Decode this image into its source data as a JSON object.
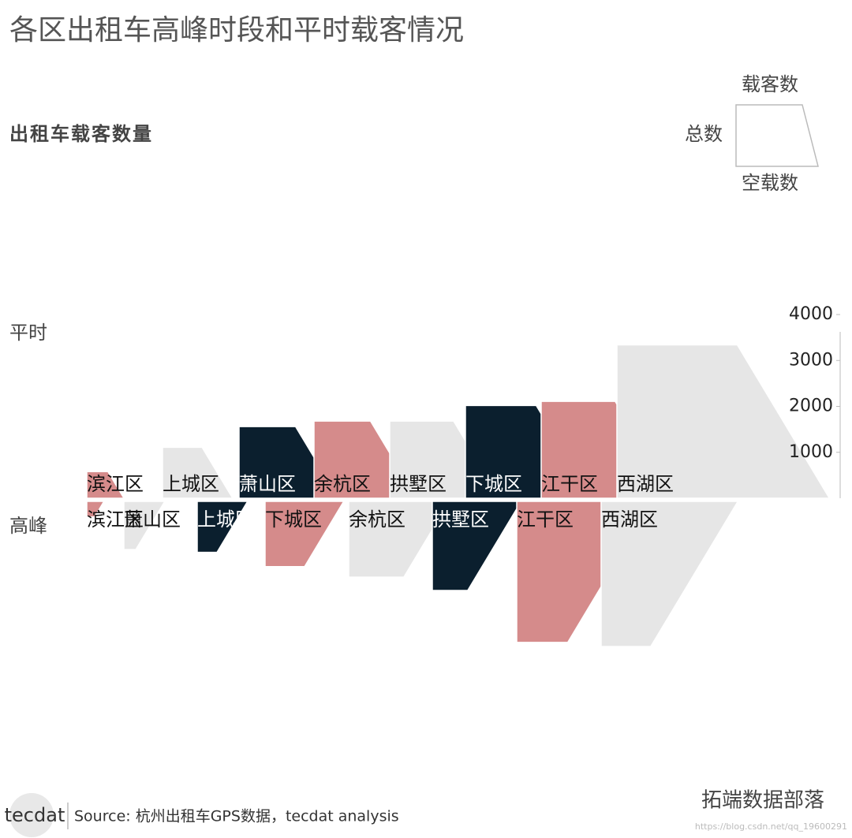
{
  "chart_data": {
    "type": "shape-arrow",
    "title": "各区出租车高峰时段和平时载客情况",
    "subtitle": "出租车载客数量",
    "legend": {
      "top": "载客数",
      "left": "总数",
      "bottom": "空载数"
    },
    "colors": [
      "#d58b8b",
      "#e6e6e6",
      "#0b1f2e"
    ],
    "ylim": [
      0,
      4000
    ],
    "yticks": [
      1000,
      2000,
      3000,
      4000
    ],
    "rows": [
      {
        "name": "平时",
        "categories": [
          "滨江区",
          "上城区",
          "萧山区",
          "余杭区",
          "拱墅区",
          "下城区",
          "江干区",
          "西湖区"
        ],
        "totals": [
          580,
          1110,
          1560,
          1680,
          1680,
          2020,
          2110,
          3340
        ],
        "loaded": [
          460,
          860,
          1230,
          1230,
          1390,
          1540,
          1610,
          2620
        ]
      },
      {
        "name": "高峰",
        "categories": [
          "滨江区",
          "萧山区",
          "上城区",
          "下城区",
          "余杭区",
          "拱墅区",
          "江干区",
          "西湖区"
        ],
        "totals": [
          340,
          1050,
          1110,
          1420,
          1650,
          1940,
          3070,
          3160
        ],
        "loaded": [
          170,
          260,
          430,
          860,
          1200,
          770,
          1110,
          1080
        ]
      }
    ],
    "source": "Source: 杭州出租车GPS数据，tecdat analysis",
    "logo": "tecdat",
    "watermark": "拓端数据部落",
    "url": "https://blog.csdn.net/qq_19600291"
  }
}
